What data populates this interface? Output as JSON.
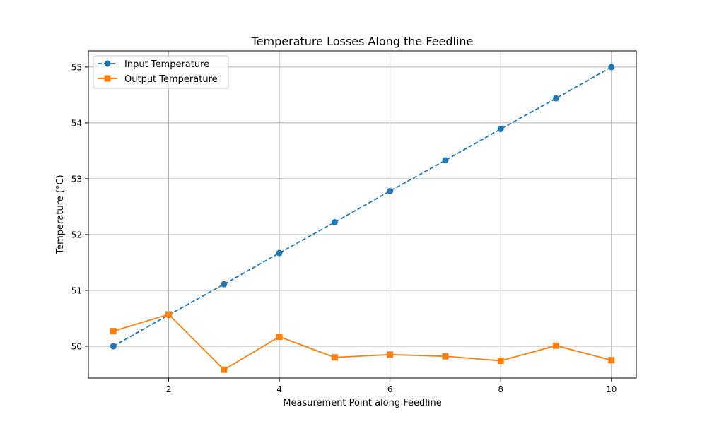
{
  "chart_data": {
    "type": "line",
    "title": "Temperature Losses Along the Feedline",
    "xlabel": "Measurement Point along Feedline",
    "ylabel": "Temperature (°C)",
    "xlim": [
      0.55,
      10.45
    ],
    "ylim": [
      49.43,
      55.29
    ],
    "xticks": [
      2,
      4,
      6,
      8,
      10
    ],
    "yticks": [
      50,
      51,
      52,
      53,
      54,
      55
    ],
    "grid": true,
    "legend_position": "upper-left",
    "series": [
      {
        "name": "Input Temperature",
        "color": "#1f77b4",
        "line_style": "dashed",
        "marker": "circle",
        "x": [
          1,
          2,
          3,
          4,
          5,
          6,
          7,
          8,
          9,
          10
        ],
        "y": [
          50.0,
          50.56,
          51.11,
          51.67,
          52.22,
          52.78,
          53.33,
          53.89,
          54.44,
          55.0
        ]
      },
      {
        "name": "Output Temperature",
        "color": "#ff7f0e",
        "line_style": "solid",
        "marker": "square",
        "x": [
          1,
          2,
          3,
          4,
          5,
          6,
          7,
          8,
          9,
          10
        ],
        "y": [
          50.27,
          50.57,
          49.58,
          50.17,
          49.8,
          49.85,
          49.82,
          49.74,
          50.01,
          49.75
        ]
      }
    ]
  }
}
